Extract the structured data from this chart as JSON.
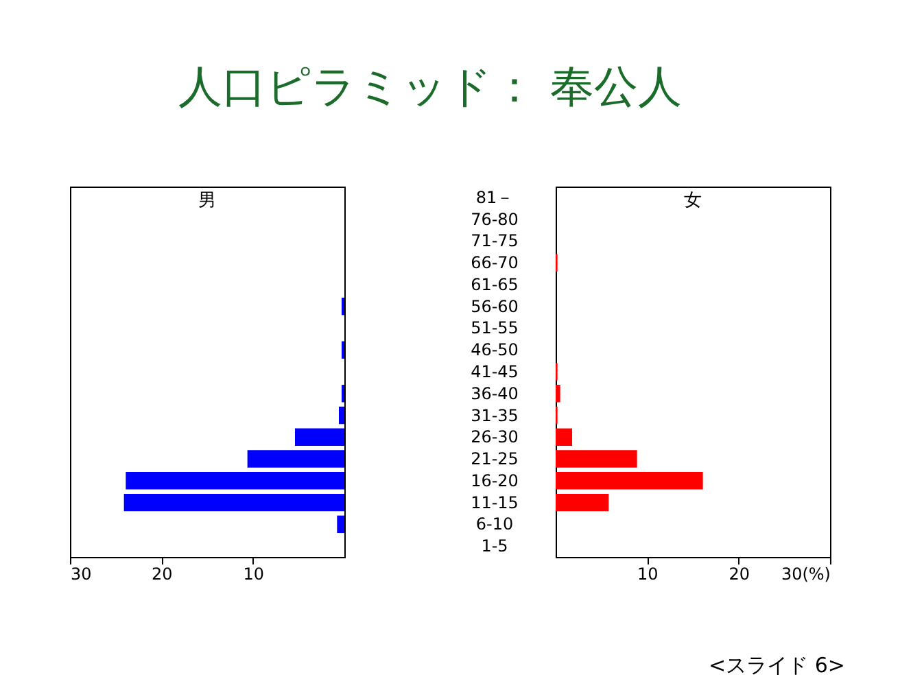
{
  "chart_data": [
    {
      "type": "bar",
      "title": "人口ピラミッド： 奉公人",
      "orientation": "horizontal",
      "tick_labels": "x",
      "categories": [
        "81－",
        "76-80",
        "71-75",
        "66-70",
        "61-65",
        "56-60",
        "51-55",
        "46-50",
        "41-45",
        "36-40",
        "31-35",
        "26-30",
        "21-25",
        "16-20",
        "11-15",
        "6-10",
        "1-5"
      ],
      "xlim": [
        30,
        0
      ],
      "xticks": [
        30,
        20,
        10
      ],
      "series": [
        {
          "name": "男",
          "color": "#0000ff",
          "values": [
            0,
            0,
            0,
            0,
            0,
            0.3,
            0,
            0.3,
            0,
            0.3,
            0.6,
            5.4,
            10.6,
            23.9,
            24.1,
            0.8,
            0
          ]
        }
      ]
    },
    {
      "type": "bar",
      "orientation": "horizontal",
      "categories": [
        "81－",
        "76-80",
        "71-75",
        "66-70",
        "61-65",
        "56-60",
        "51-55",
        "46-50",
        "41-45",
        "36-40",
        "31-35",
        "26-30",
        "21-25",
        "16-20",
        "11-15",
        "6-10",
        "1-5"
      ],
      "xlim": [
        0,
        30
      ],
      "xticks": [
        10,
        20,
        {
          "value": 30,
          "label": "30(%)"
        }
      ],
      "annotations": [
        "<スライド 6>"
      ],
      "series": [
        {
          "name": "女",
          "color": "#ff0000",
          "values": [
            0,
            0,
            0,
            0.2,
            0,
            0,
            0,
            0,
            0.2,
            0.5,
            0.2,
            1.8,
            8.9,
            16.1,
            5.8,
            0,
            0
          ]
        }
      ]
    }
  ]
}
